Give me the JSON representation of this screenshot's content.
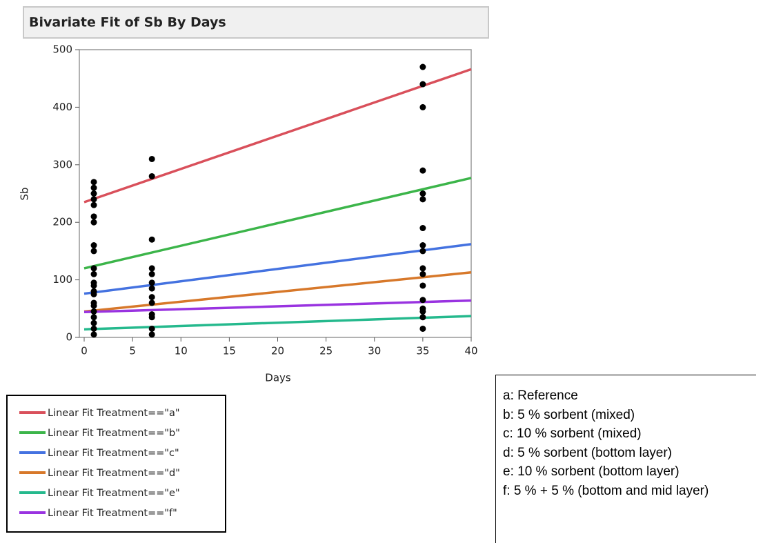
{
  "chart_data": {
    "type": "scatter",
    "title": "Bivariate Fit of Sb By Days",
    "x_label": "Days",
    "y_label": "Sb",
    "xlim": [
      -0.5,
      40
    ],
    "ylim": [
      0,
      500
    ],
    "xticks": [
      0,
      5,
      10,
      15,
      20,
      25,
      30,
      35,
      40
    ],
    "yticks": [
      0,
      100,
      200,
      300,
      400,
      500
    ],
    "points": {
      "color": "#000000",
      "x": [
        1,
        1,
        1,
        1,
        1,
        1,
        1,
        1,
        1,
        1,
        1,
        1,
        1,
        1,
        1,
        1,
        1,
        1,
        1,
        1,
        1,
        1,
        7,
        7,
        7,
        7,
        7,
        7,
        7,
        7,
        7,
        7,
        7,
        7,
        7,
        35,
        35,
        35,
        35,
        35,
        35,
        35,
        35,
        35,
        35,
        35,
        35,
        35,
        35,
        35,
        35,
        35
      ],
      "values": [
        270,
        260,
        250,
        240,
        230,
        210,
        200,
        160,
        150,
        120,
        110,
        95,
        90,
        80,
        75,
        60,
        55,
        45,
        35,
        25,
        15,
        5,
        310,
        280,
        170,
        120,
        110,
        95,
        85,
        70,
        60,
        40,
        35,
        15,
        5,
        470,
        440,
        400,
        290,
        250,
        240,
        190,
        160,
        150,
        120,
        110,
        90,
        65,
        50,
        45,
        35,
        15
      ]
    },
    "series": [
      {
        "name": "Linear Fit Treatment==\"a\"",
        "color": "#d9505b",
        "x": [
          0,
          40
        ],
        "values": [
          235,
          466
        ]
      },
      {
        "name": "Linear Fit Treatment==\"b\"",
        "color": "#3cb54a",
        "x": [
          0,
          40
        ],
        "values": [
          120,
          277
        ]
      },
      {
        "name": "Linear Fit Treatment==\"c\"",
        "color": "#4472e0",
        "x": [
          0,
          40
        ],
        "values": [
          76,
          162
        ]
      },
      {
        "name": "Linear Fit Treatment==\"d\"",
        "color": "#d7782a",
        "x": [
          0,
          40
        ],
        "values": [
          45,
          113
        ]
      },
      {
        "name": "Linear Fit Treatment==\"e\"",
        "color": "#25b98d",
        "x": [
          0,
          40
        ],
        "values": [
          14,
          37
        ]
      },
      {
        "name": "Linear Fit Treatment==\"f\"",
        "color": "#9933e0",
        "x": [
          0,
          40
        ],
        "values": [
          44,
          64
        ]
      }
    ],
    "notes": [
      "a: Reference",
      "b: 5 % sorbent (mixed)",
      "c: 10 % sorbent (mixed)",
      "d: 5 % sorbent (bottom layer)",
      "e: 10 % sorbent (bottom layer)",
      "f: 5 % + 5 % (bottom and mid layer)"
    ]
  }
}
